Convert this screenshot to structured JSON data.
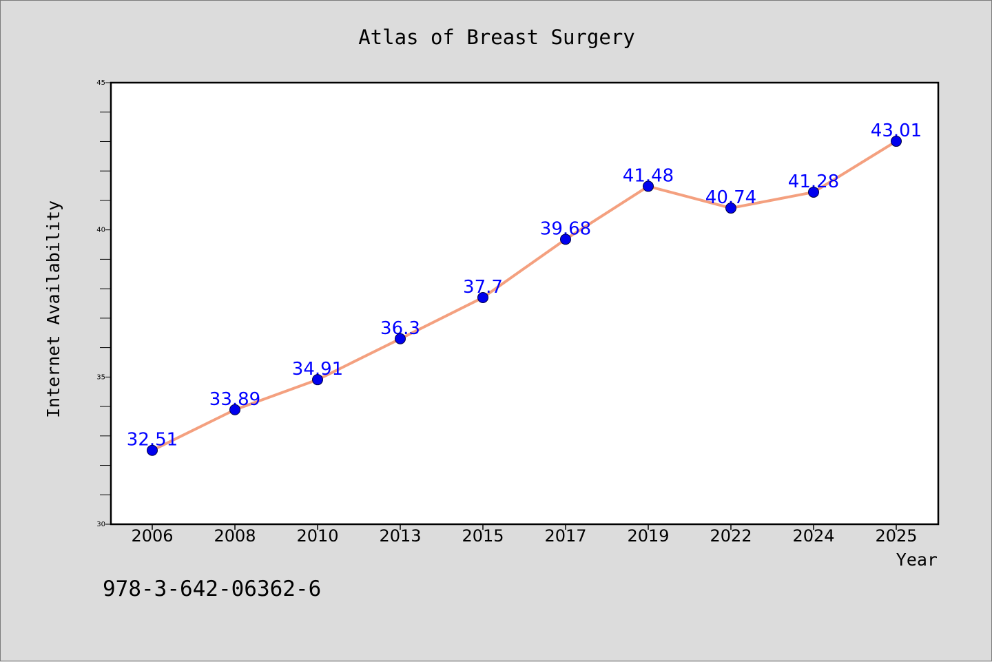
{
  "chart_data": {
    "type": "line",
    "title": "Atlas of Breast Surgery",
    "xlabel": "Year",
    "ylabel": "Internet Availability",
    "categories": [
      "2006",
      "2008",
      "2010",
      "2013",
      "2015",
      "2017",
      "2019",
      "2022",
      "2024",
      "2025"
    ],
    "series": [
      {
        "values": [
          32.51,
          33.89,
          34.91,
          36.3,
          37.7,
          39.68,
          41.48,
          40.74,
          41.28,
          43.01
        ],
        "labels": [
          "32.51",
          "33.89",
          "34.91",
          "36.3",
          "37.7",
          "39.68",
          "41.48",
          "40.74",
          "41.28",
          "43.01"
        ]
      }
    ],
    "ylim": [
      30,
      45
    ],
    "yticks": [
      "30",
      "35",
      "40",
      "45"
    ],
    "grid": false,
    "colors": {
      "line": "#f4a07f",
      "marker": "#0000ee",
      "label": "#0000ff"
    }
  },
  "footer": "978-3-642-06362-6"
}
